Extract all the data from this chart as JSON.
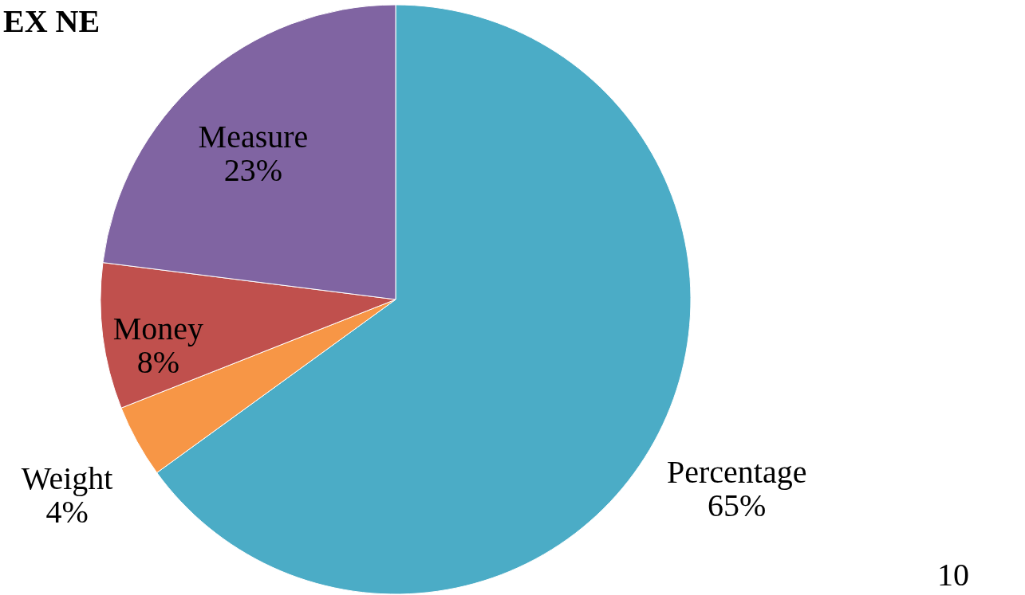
{
  "chart_data": {
    "type": "pie",
    "title": "EX NE",
    "categories": [
      "Percentage",
      "Weight",
      "Money",
      "Measure"
    ],
    "values": [
      65,
      4,
      8,
      23
    ],
    "value_labels": [
      "65%",
      "4%",
      "8%",
      "23%"
    ],
    "colors": [
      "#4bacc6",
      "#f79646",
      "#c0504d",
      "#8064a2"
    ],
    "annotations": [
      "10"
    ]
  }
}
